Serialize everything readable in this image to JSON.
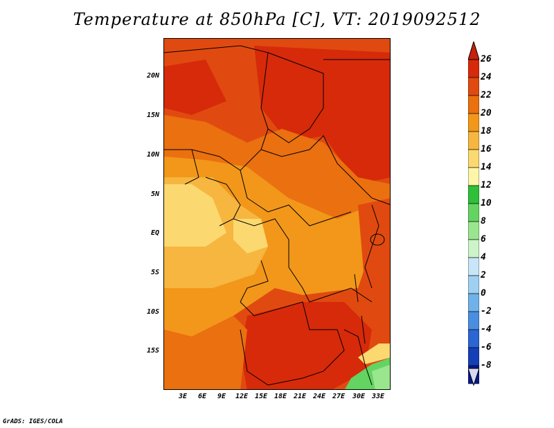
{
  "title": "Temperature at 850hPa [C], VT: 2019092512",
  "credit": "GrADS: IGES/COLA",
  "lat_ticks": [
    "20N",
    "15N",
    "10N",
    "5N",
    "EQ",
    "5S",
    "10S",
    "15S"
  ],
  "lon_ticks": [
    "3E",
    "6E",
    "9E",
    "12E",
    "15E",
    "18E",
    "21E",
    "24E",
    "27E",
    "30E",
    "33E"
  ],
  "colorbar": {
    "labels": [
      "26",
      "24",
      "22",
      "20",
      "18",
      "16",
      "14",
      "12",
      "10",
      "8",
      "6",
      "4",
      "2",
      "0",
      "-2",
      "-4",
      "-6",
      "-8"
    ],
    "colors": [
      "#d62a0a",
      "#e04a10",
      "#ea7010",
      "#f2971a",
      "#f6b640",
      "#fbd970",
      "#fdf6a8",
      "#2fbf3a",
      "#63d461",
      "#9ae68e",
      "#cdf4c8",
      "#c8e6f7",
      "#9fd0f2",
      "#6fb2ea",
      "#4a8ee0",
      "#2b66d2",
      "#153fb6",
      "#081a8c"
    ],
    "top_triangle": "#c8200a",
    "bottom_triangle": "#d8d8f4"
  }
}
